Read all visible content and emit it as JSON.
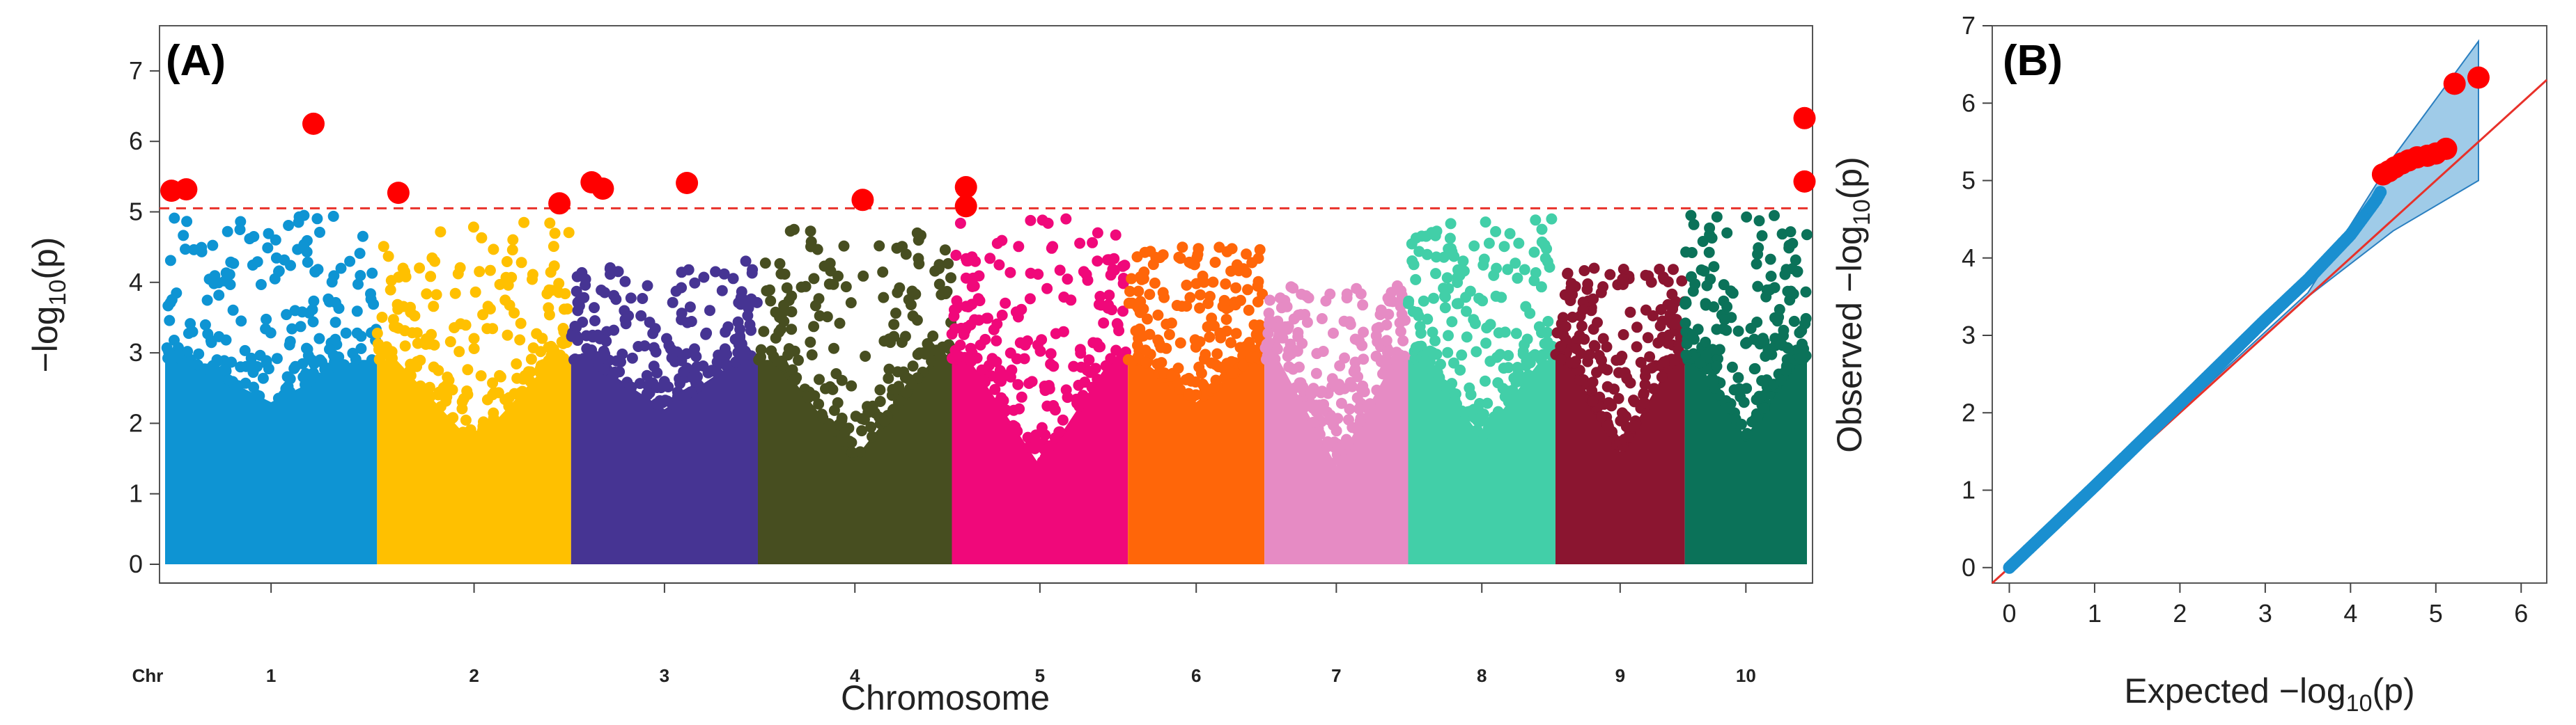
{
  "figure": {
    "panel_a_tag": "(A)",
    "panel_b_tag": "(B)"
  },
  "chart_data": [
    {
      "type": "scatter",
      "subtype": "manhattan",
      "panel": "(A)",
      "xlabel": "Chromosome",
      "ylabel_prefix": "−log",
      "ylabel_sub": "10",
      "ylabel_suffix": "(p)",
      "ylim": [
        0,
        7
      ],
      "yticks": [
        0,
        1,
        2,
        3,
        4,
        5,
        6,
        7
      ],
      "chr_axis_label": "Chr",
      "threshold": 5.05,
      "threshold_color": "#e8312a",
      "highlight_color": "#ff0000",
      "chromosomes": [
        {
          "name": "1",
          "color": "#0e94d3",
          "peak": 4.95,
          "floor": 2.3
        },
        {
          "name": "2",
          "color": "#ffc000",
          "peak": 4.85,
          "floor": 1.7
        },
        {
          "name": "3",
          "color": "#463493",
          "peak": 4.3,
          "floor": 2.2
        },
        {
          "name": "4",
          "color": "#474e20",
          "peak": 4.75,
          "floor": 1.5
        },
        {
          "name": "5",
          "color": "#f0087a",
          "peak": 4.9,
          "floor": 1.4
        },
        {
          "name": "6",
          "color": "#ff6609",
          "peak": 4.5,
          "floor": 2.3
        },
        {
          "name": "7",
          "color": "#e68bc4",
          "peak": 3.95,
          "floor": 1.4
        },
        {
          "name": "8",
          "color": "#42cfa8",
          "peak": 4.9,
          "floor": 1.8
        },
        {
          "name": "9",
          "color": "#8b1530",
          "peak": 4.2,
          "floor": 1.6
        },
        {
          "name": "10",
          "color": "#0b7259",
          "peak": 4.95,
          "floor": 1.8
        }
      ],
      "significant_points": [
        {
          "chr": "1",
          "pos": 0.03,
          "y": 5.3
        },
        {
          "chr": "1",
          "pos": 0.1,
          "y": 5.32
        },
        {
          "chr": "1",
          "pos": 0.7,
          "y": 6.25
        },
        {
          "chr": "2",
          "pos": 0.11,
          "y": 5.27
        },
        {
          "chr": "2",
          "pos": 0.94,
          "y": 5.12
        },
        {
          "chr": "3",
          "pos": 0.11,
          "y": 5.42
        },
        {
          "chr": "3",
          "pos": 0.17,
          "y": 5.33
        },
        {
          "chr": "3",
          "pos": 0.62,
          "y": 5.41
        },
        {
          "chr": "4",
          "pos": 0.54,
          "y": 5.17
        },
        {
          "chr": "5",
          "pos": 0.08,
          "y": 5.35
        },
        {
          "chr": "5",
          "pos": 0.08,
          "y": 5.08
        },
        {
          "chr": "10",
          "pos": 0.98,
          "y": 6.33
        },
        {
          "chr": "10",
          "pos": 0.98,
          "y": 5.43
        }
      ]
    },
    {
      "type": "scatter",
      "subtype": "qq",
      "panel": "(B)",
      "xlabel_prefix": "Expected −log",
      "xlabel_sub": "10",
      "xlabel_suffix": "(p)",
      "ylabel_prefix": "Observed −log",
      "ylabel_sub": "10",
      "ylabel_suffix": "(p)",
      "xlim": [
        -0.2,
        6.3
      ],
      "ylim": [
        -0.2,
        7
      ],
      "xticks": [
        0,
        1,
        2,
        3,
        4,
        5,
        6
      ],
      "yticks": [
        0,
        1,
        2,
        3,
        4,
        5,
        6,
        7
      ],
      "expected_line_color": "#e8312a",
      "point_color": "#1a8fd0",
      "band_color": "#9fcbe8",
      "max_expected": 5.5,
      "observed_curve": [
        [
          0,
          0
        ],
        [
          1,
          1.05
        ],
        [
          2,
          2.12
        ],
        [
          3,
          3.2
        ],
        [
          3.5,
          3.72
        ],
        [
          4,
          4.3
        ],
        [
          4.3,
          4.75
        ],
        [
          4.35,
          4.85
        ]
      ],
      "band": [
        [
          0,
          0
        ],
        [
          3.5,
          3.5
        ],
        [
          4.5,
          4.35
        ],
        [
          5.5,
          5.0
        ],
        [
          5.5,
          6.8
        ],
        [
          4.5,
          5.3
        ],
        [
          3.5,
          3.55
        ]
      ],
      "significant_points": [
        [
          4.38,
          5.08
        ],
        [
          4.45,
          5.12
        ],
        [
          4.52,
          5.17
        ],
        [
          4.6,
          5.22
        ],
        [
          4.68,
          5.26
        ],
        [
          4.78,
          5.3
        ],
        [
          4.9,
          5.32
        ],
        [
          5.0,
          5.35
        ],
        [
          5.12,
          5.41
        ],
        [
          5.22,
          6.25
        ],
        [
          5.5,
          6.33
        ]
      ]
    }
  ]
}
